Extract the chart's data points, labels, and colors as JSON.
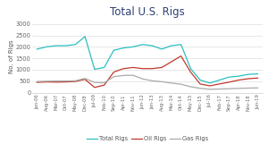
{
  "title": "Total U.S. Rigs",
  "ylabel": "No. of Rigs",
  "yticks": [
    0,
    500,
    1000,
    1500,
    2000,
    2500,
    3000
  ],
  "ylim": [
    -30,
    3200
  ],
  "background_color": "#ffffff",
  "title_color": "#2E4074",
  "line_colors": {
    "total": "#2abfbf",
    "oil": "#c0392b",
    "gas": "#aaaaaa"
  },
  "legend_labels": [
    "Total Rigs",
    "Oil Rigs",
    "Gas Rigs"
  ],
  "xtick_labels": [
    "Jan-06",
    "Aug-06",
    "Mar-07",
    "Oct-07",
    "May-08",
    "Dec-08",
    "Jul-09",
    "Feb-10",
    "Sep-10",
    "Apr-11",
    "Nov-11",
    "Jun-12",
    "Jan-13",
    "Aug-13",
    "Mar-14",
    "Oct-14",
    "May-15",
    "Dec-15",
    "Jul-16",
    "Feb-17",
    "Sep-17",
    "Apr-18",
    "Nov-18",
    "Jun-19"
  ],
  "total_rigs": [
    1900,
    2000,
    2050,
    2050,
    2100,
    2450,
    1020,
    1100,
    1850,
    1950,
    2000,
    2100,
    2050,
    1900,
    2050,
    2100,
    1050,
    550,
    420,
    550,
    680,
    720,
    800,
    820
  ],
  "oil_rigs": [
    450,
    470,
    460,
    470,
    490,
    580,
    230,
    330,
    900,
    1050,
    1100,
    1050,
    1050,
    1100,
    1350,
    1600,
    900,
    380,
    300,
    380,
    460,
    550,
    610,
    640
  ],
  "gas_rigs": [
    490,
    500,
    510,
    510,
    520,
    620,
    450,
    430,
    700,
    750,
    760,
    600,
    520,
    480,
    420,
    370,
    260,
    190,
    150,
    160,
    175,
    190,
    200,
    210
  ]
}
